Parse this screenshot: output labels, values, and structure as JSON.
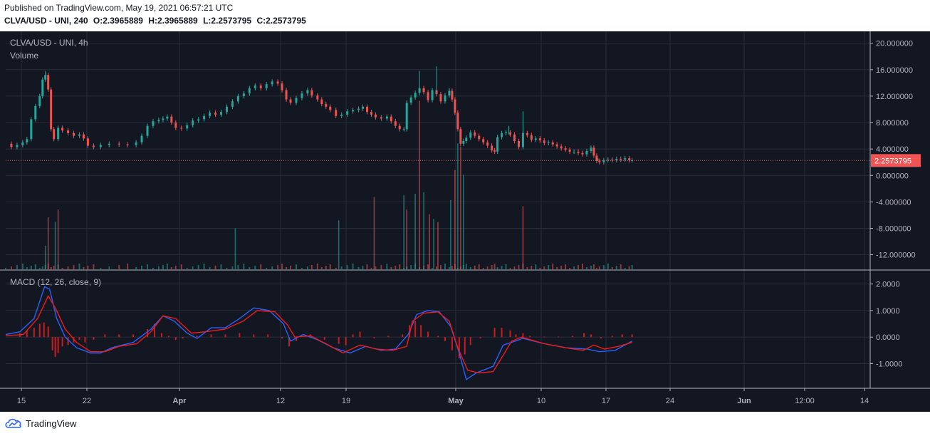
{
  "header": {
    "published": "Published on TradingView.com, May 19, 2021 06:57:21 UTC",
    "symbol_interval": "CLVA/USD - UNI, 240",
    "ohlc": [
      "O:2.3965889",
      "H:2.3965889",
      "L:2.2573795",
      "C:2.2573795"
    ]
  },
  "legend": {
    "main": "CLVA/USD - UNI, 4h",
    "volume": "Volume",
    "macd": "MACD (12, 26, close, 9)"
  },
  "footer": {
    "brand": "TradingView"
  },
  "colors": {
    "background": "#131722",
    "grid": "#2a2e39",
    "up": "#26a69a",
    "down": "#ef5350",
    "volume_up": "#26a69a",
    "volume_down": "#ef5350",
    "macd_line": "#2962ff",
    "signal_line": "#ef1b1b",
    "histogram": "#ef1b1b",
    "last_price": "#f05454"
  },
  "chart_data": [
    {
      "type": "candlestick",
      "title": "CLVA/USD - UNI, 4h",
      "y_ticks": [
        "20.000000",
        "16.000000",
        "12.000000",
        "8.000000",
        "4.000000",
        "0.000000",
        "-4.000000",
        "-8.000000",
        "-12.000000"
      ],
      "ylim": [
        -14.2,
        21.8
      ],
      "last_price": 2.2573795,
      "last_price_label": "2.2573795",
      "x_ticks": [
        "15",
        "22",
        "Apr",
        "12",
        "19",
        "May",
        "10",
        "17",
        "24",
        "Jun",
        "12:00",
        "14"
      ],
      "xlim": [
        0,
        1220
      ],
      "closes": [
        [
          0,
          4.8
        ],
        [
          8,
          4.3
        ],
        [
          16,
          4.6
        ],
        [
          24,
          5.0
        ],
        [
          30,
          5.5
        ],
        [
          36,
          8.5
        ],
        [
          42,
          10.5
        ],
        [
          48,
          12.0
        ],
        [
          52,
          14.5
        ],
        [
          56,
          15.2
        ],
        [
          60,
          13.0
        ],
        [
          64,
          7.0
        ],
        [
          68,
          5.5
        ],
        [
          74,
          7.2
        ],
        [
          80,
          6.8
        ],
        [
          88,
          6.4
        ],
        [
          96,
          6.0
        ],
        [
          104,
          6.2
        ],
        [
          110,
          5.6
        ],
        [
          116,
          4.5
        ],
        [
          124,
          4.3
        ],
        [
          134,
          4.6
        ],
        [
          146,
          4.8
        ],
        [
          160,
          4.7
        ],
        [
          172,
          4.6
        ],
        [
          184,
          5.0
        ],
        [
          192,
          6.0
        ],
        [
          200,
          7.5
        ],
        [
          208,
          8.2
        ],
        [
          216,
          8.4
        ],
        [
          222,
          8.6
        ],
        [
          228,
          8.9
        ],
        [
          234,
          8.0
        ],
        [
          240,
          7.2
        ],
        [
          248,
          7.1
        ],
        [
          256,
          7.6
        ],
        [
          264,
          8.3
        ],
        [
          272,
          8.5
        ],
        [
          280,
          9.0
        ],
        [
          288,
          9.5
        ],
        [
          296,
          9.2
        ],
        [
          304,
          9.6
        ],
        [
          312,
          10.4
        ],
        [
          320,
          11.2
        ],
        [
          328,
          12.0
        ],
        [
          336,
          12.4
        ],
        [
          344,
          13.2
        ],
        [
          352,
          13.6
        ],
        [
          360,
          13.2
        ],
        [
          368,
          13.8
        ],
        [
          376,
          14.2
        ],
        [
          384,
          13.9
        ],
        [
          390,
          12.9
        ],
        [
          396,
          11.5
        ],
        [
          402,
          11.0
        ],
        [
          410,
          11.7
        ],
        [
          418,
          12.4
        ],
        [
          426,
          12.9
        ],
        [
          432,
          12.1
        ],
        [
          440,
          11.5
        ],
        [
          446,
          10.8
        ],
        [
          452,
          10.4
        ],
        [
          458,
          9.9
        ],
        [
          466,
          9.0
        ],
        [
          474,
          9.2
        ],
        [
          482,
          9.7
        ],
        [
          490,
          9.9
        ],
        [
          498,
          10.1
        ],
        [
          504,
          10.4
        ],
        [
          510,
          9.6
        ],
        [
          516,
          9.2
        ],
        [
          522,
          8.8
        ],
        [
          530,
          8.6
        ],
        [
          538,
          8.9
        ],
        [
          544,
          8.2
        ],
        [
          550,
          7.5
        ],
        [
          556,
          7.0
        ],
        [
          562,
          7.0
        ],
        [
          566,
          11.0
        ],
        [
          572,
          11.8
        ],
        [
          578,
          12.5
        ],
        [
          584,
          13.2
        ],
        [
          590,
          12.6
        ],
        [
          596,
          11.4
        ],
        [
          602,
          12.9
        ],
        [
          608,
          12.3
        ],
        [
          614,
          11.2
        ],
        [
          620,
          12.1
        ],
        [
          626,
          12.8
        ],
        [
          630,
          11.5
        ],
        [
          634,
          9.5
        ],
        [
          638,
          7.0
        ],
        [
          642,
          4.8
        ],
        [
          646,
          5.2
        ],
        [
          650,
          5.7
        ],
        [
          656,
          6.5
        ],
        [
          662,
          6.0
        ],
        [
          668,
          5.5
        ],
        [
          674,
          5.0
        ],
        [
          680,
          4.5
        ],
        [
          686,
          3.8
        ],
        [
          690,
          3.6
        ],
        [
          694,
          5.8
        ],
        [
          700,
          6.4
        ],
        [
          706,
          6.5
        ],
        [
          712,
          6.2
        ],
        [
          718,
          5.2
        ],
        [
          724,
          4.3
        ],
        [
          730,
          6.4
        ],
        [
          736,
          6.1
        ],
        [
          742,
          5.4
        ],
        [
          748,
          5.6
        ],
        [
          754,
          5.3
        ],
        [
          760,
          4.9
        ],
        [
          766,
          5.0
        ],
        [
          772,
          4.7
        ],
        [
          778,
          4.4
        ],
        [
          784,
          4.1
        ],
        [
          790,
          3.9
        ],
        [
          796,
          3.6
        ],
        [
          802,
          3.6
        ],
        [
          808,
          3.4
        ],
        [
          814,
          3.2
        ],
        [
          820,
          3.7
        ],
        [
          826,
          4.2
        ],
        [
          830,
          3.0
        ],
        [
          834,
          2.2
        ],
        [
          838,
          2.0
        ],
        [
          844,
          2.3
        ],
        [
          850,
          2.4
        ],
        [
          856,
          2.3
        ],
        [
          862,
          2.5
        ],
        [
          868,
          2.4
        ],
        [
          874,
          2.6
        ],
        [
          880,
          2.3
        ],
        [
          884,
          2.3
        ]
      ],
      "wick_highs": [
        [
          56,
          15.8
        ],
        [
          60,
          14.5
        ],
        [
          584,
          15.8
        ],
        [
          608,
          16.5
        ],
        [
          626,
          13.2
        ],
        [
          730,
          9.7
        ],
        [
          710,
          7.5
        ],
        [
          836,
          2.6
        ]
      ],
      "volume_spikes": [
        [
          56,
          1.5
        ],
        [
          60,
          3.3
        ],
        [
          70,
          3.0
        ],
        [
          74,
          3.8
        ],
        [
          324,
          2.6
        ],
        [
          520,
          4.6
        ],
        [
          562,
          4.7
        ],
        [
          566,
          3.8
        ],
        [
          578,
          4.8
        ],
        [
          584,
          10.7
        ],
        [
          590,
          4.9
        ],
        [
          598,
          3.5
        ],
        [
          604,
          3.2
        ],
        [
          610,
          3.0
        ],
        [
          628,
          4.4
        ],
        [
          634,
          6.3
        ],
        [
          638,
          8.0
        ],
        [
          642,
          7.8
        ],
        [
          646,
          6.0
        ],
        [
          730,
          4.0
        ],
        [
          470,
          3.1
        ]
      ]
    },
    {
      "type": "line",
      "title": "MACD (12, 26, close, 9)",
      "y_ticks": [
        "2.0000",
        "1.0000",
        "0.0000",
        "-1.0000"
      ],
      "ylim": [
        -1.9,
        2.5
      ],
      "series": [
        {
          "values": [
            [
              0,
              0.1
            ],
            [
              20,
              0.2
            ],
            [
              40,
              0.7
            ],
            [
              55,
              1.9
            ],
            [
              62,
              1.8
            ],
            [
              72,
              0.7
            ],
            [
              84,
              0.0
            ],
            [
              100,
              -0.4
            ],
            [
              120,
              -0.6
            ],
            [
              134,
              -0.6
            ],
            [
              150,
              -0.4
            ],
            [
              180,
              -0.2
            ],
            [
              205,
              0.3
            ],
            [
              222,
              0.8
            ],
            [
              238,
              0.6
            ],
            [
              256,
              0.15
            ],
            [
              270,
              -0.05
            ],
            [
              290,
              0.35
            ],
            [
              310,
              0.35
            ],
            [
              330,
              0.7
            ],
            [
              350,
              1.1
            ],
            [
              372,
              1.0
            ],
            [
              392,
              0.5
            ],
            [
              402,
              -0.15
            ],
            [
              420,
              0.1
            ],
            [
              440,
              -0.1
            ],
            [
              462,
              -0.4
            ],
            [
              486,
              -0.6
            ],
            [
              508,
              -0.35
            ],
            [
              530,
              -0.5
            ],
            [
              550,
              -0.45
            ],
            [
              568,
              0.1
            ],
            [
              580,
              0.85
            ],
            [
              596,
              1.0
            ],
            [
              612,
              0.95
            ],
            [
              628,
              0.4
            ],
            [
              640,
              -0.6
            ],
            [
              650,
              -1.6
            ],
            [
              664,
              -1.35
            ],
            [
              688,
              -1.1
            ],
            [
              702,
              -0.3
            ],
            [
              714,
              -0.2
            ],
            [
              730,
              -0.05
            ],
            [
              760,
              -0.25
            ],
            [
              790,
              -0.4
            ],
            [
              820,
              -0.45
            ],
            [
              838,
              -0.55
            ],
            [
              860,
              -0.5
            ],
            [
              884,
              -0.15
            ]
          ]
        },
        {
          "values": [
            [
              0,
              0.05
            ],
            [
              25,
              0.1
            ],
            [
              45,
              0.7
            ],
            [
              60,
              1.55
            ],
            [
              70,
              1.1
            ],
            [
              84,
              0.3
            ],
            [
              100,
              -0.2
            ],
            [
              120,
              -0.55
            ],
            [
              140,
              -0.55
            ],
            [
              160,
              -0.35
            ],
            [
              185,
              -0.25
            ],
            [
              205,
              0.2
            ],
            [
              222,
              0.8
            ],
            [
              240,
              0.7
            ],
            [
              262,
              0.15
            ],
            [
              282,
              0.2
            ],
            [
              310,
              0.3
            ],
            [
              335,
              0.6
            ],
            [
              355,
              1.0
            ],
            [
              380,
              0.95
            ],
            [
              398,
              0.45
            ],
            [
              408,
              0.0
            ],
            [
              430,
              0.05
            ],
            [
              452,
              -0.25
            ],
            [
              476,
              -0.6
            ],
            [
              500,
              -0.3
            ],
            [
              524,
              -0.45
            ],
            [
              546,
              -0.5
            ],
            [
              566,
              -0.35
            ],
            [
              574,
              0.6
            ],
            [
              590,
              0.9
            ],
            [
              610,
              0.95
            ],
            [
              626,
              0.6
            ],
            [
              638,
              -0.4
            ],
            [
              652,
              -1.25
            ],
            [
              668,
              -1.35
            ],
            [
              688,
              -1.3
            ],
            [
              704,
              -0.6
            ],
            [
              714,
              -0.15
            ],
            [
              728,
              0.0
            ],
            [
              760,
              -0.25
            ],
            [
              790,
              -0.4
            ],
            [
              815,
              -0.5
            ],
            [
              830,
              -0.3
            ],
            [
              845,
              -0.45
            ],
            [
              865,
              -0.35
            ],
            [
              884,
              -0.2
            ]
          ]
        }
      ],
      "histogram": [
        [
          20,
          0.15
        ],
        [
          30,
          0.25
        ],
        [
          40,
          0.35
        ],
        [
          48,
          0.5
        ],
        [
          54,
          0.55
        ],
        [
          60,
          0.4
        ],
        [
          66,
          -0.5
        ],
        [
          70,
          -0.75
        ],
        [
          74,
          -0.6
        ],
        [
          80,
          -0.35
        ],
        [
          88,
          -0.3
        ],
        [
          96,
          -0.2
        ],
        [
          104,
          -0.1
        ],
        [
          112,
          -0.2
        ],
        [
          124,
          -0.1
        ],
        [
          140,
          0.1
        ],
        [
          160,
          0.1
        ],
        [
          180,
          0.1
        ],
        [
          200,
          0.3
        ],
        [
          210,
          0.5
        ],
        [
          220,
          0.15
        ],
        [
          230,
          0.05
        ],
        [
          240,
          -0.1
        ],
        [
          250,
          -0.05
        ],
        [
          270,
          0.05
        ],
        [
          290,
          0.1
        ],
        [
          310,
          0.1
        ],
        [
          330,
          0.15
        ],
        [
          350,
          0.1
        ],
        [
          370,
          0.1
        ],
        [
          390,
          -0.05
        ],
        [
          400,
          -0.35
        ],
        [
          410,
          -0.15
        ],
        [
          430,
          0.1
        ],
        [
          450,
          -0.1
        ],
        [
          470,
          -0.25
        ],
        [
          480,
          -0.3
        ],
        [
          490,
          0.1
        ],
        [
          500,
          0.2
        ],
        [
          520,
          -0.05
        ],
        [
          540,
          0.05
        ],
        [
          560,
          0.1
        ],
        [
          570,
          0.45
        ],
        [
          578,
          0.6
        ],
        [
          586,
          0.45
        ],
        [
          596,
          0.2
        ],
        [
          610,
          0.05
        ],
        [
          620,
          -0.15
        ],
        [
          630,
          -0.5
        ],
        [
          640,
          -0.8
        ],
        [
          648,
          -0.65
        ],
        [
          656,
          -0.3
        ],
        [
          670,
          -0.05
        ],
        [
          690,
          0.35
        ],
        [
          700,
          0.35
        ],
        [
          712,
          0.25
        ],
        [
          720,
          0.1
        ],
        [
          730,
          0.15
        ],
        [
          740,
          0.05
        ],
        [
          760,
          0.02
        ],
        [
          780,
          0.02
        ],
        [
          800,
          0.05
        ],
        [
          816,
          0.15
        ],
        [
          826,
          0.1
        ],
        [
          840,
          -0.05
        ],
        [
          856,
          0.05
        ],
        [
          870,
          0.1
        ],
        [
          884,
          0.1
        ]
      ]
    }
  ]
}
